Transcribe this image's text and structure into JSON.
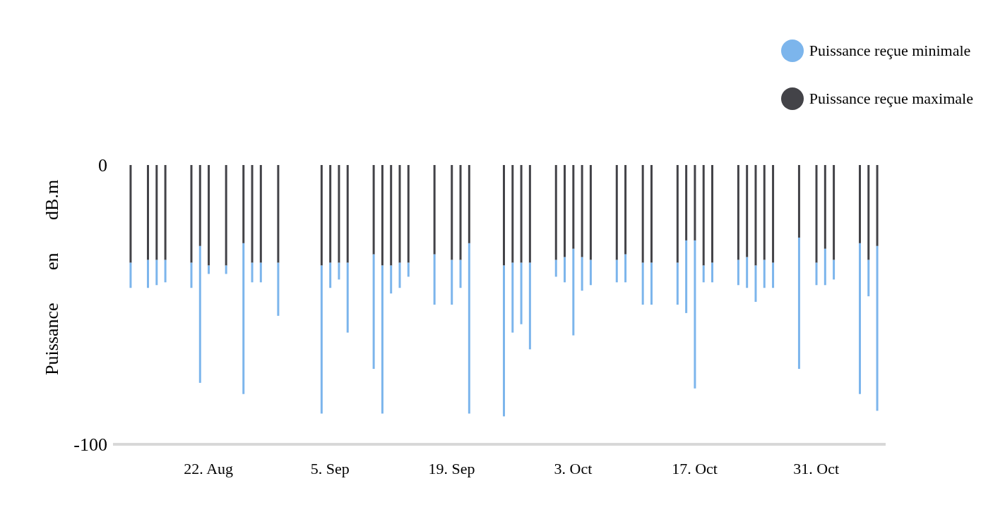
{
  "chart_data": {
    "type": "bar",
    "stacked": true,
    "ylabel": "Puissance en dB.m",
    "x": [
      "--08-13",
      "--08-15",
      "--08-16",
      "--08-17",
      "--08-20",
      "--08-21",
      "--08-22",
      "--08-24",
      "--08-26",
      "--08-27",
      "--08-28",
      "--08-30",
      "--09-04",
      "--09-05",
      "--09-06",
      "--09-07",
      "--09-10",
      "--09-11",
      "--09-12",
      "--09-13",
      "--09-14",
      "--09-17",
      "--09-19",
      "--09-20",
      "--09-21",
      "--09-25",
      "--09-26",
      "--09-27",
      "--09-28",
      "--10-01",
      "--10-02",
      "--10-03",
      "--10-04",
      "--10-05",
      "--10-08",
      "--10-09",
      "--10-11",
      "--10-12",
      "--10-15",
      "--10-16",
      "--10-17",
      "--10-18",
      "--10-19",
      "--10-22",
      "--10-23",
      "--10-24",
      "--10-25",
      "--10-26",
      "--10-29",
      "--10-31",
      "--11-01",
      "--11-02",
      "--11-05",
      "--11-06",
      "--11-07"
    ],
    "series": [
      {
        "name": "Puissance reçue maximale",
        "color": "#434348",
        "values": [
          -35,
          -34,
          -34,
          -34,
          -35,
          -29,
          -36,
          -36,
          -28,
          -35,
          -35,
          -35,
          -36,
          -35,
          -35,
          -35,
          -32,
          -36,
          -36,
          -35,
          -35,
          -32,
          -34,
          -34,
          -28,
          -36,
          -35,
          -35,
          -35,
          -34,
          -33,
          -30,
          -33,
          -34,
          -34,
          -32,
          -35,
          -35,
          -35,
          -27,
          -27,
          -36,
          -35,
          -34,
          -33,
          -36,
          -34,
          -35,
          -26,
          -35,
          -30,
          -34,
          -28,
          -34,
          -29
        ]
      },
      {
        "name": "Puissance reçue minimale",
        "color": "#7cb5ec",
        "values": [
          -9,
          -10,
          -9,
          -8,
          -9,
          -49,
          -3,
          -3,
          -54,
          -7,
          -7,
          -19,
          -53,
          -9,
          -6,
          -25,
          -41,
          -53,
          -10,
          -9,
          -5,
          -18,
          -16,
          -10,
          -61,
          -54,
          -25,
          -22,
          -31,
          -6,
          -9,
          -31,
          -12,
          -9,
          -8,
          -10,
          -15,
          -15,
          -15,
          -26,
          -53,
          -6,
          -7,
          -9,
          -11,
          -13,
          -10,
          -9,
          -47,
          -8,
          -13,
          -7,
          -54,
          -13,
          -59
        ]
      }
    ],
    "xlim": [
      "--08-11",
      "--11-08"
    ],
    "xticks": [
      {
        "value": "--08-22",
        "label": "22. Aug"
      },
      {
        "value": "--09-05",
        "label": "5. Sep"
      },
      {
        "value": "--09-19",
        "label": "19. Sep"
      },
      {
        "value": "--10-03",
        "label": "3. Oct"
      },
      {
        "value": "--10-17",
        "label": "17. Oct"
      },
      {
        "value": "--10-31",
        "label": "31. Oct"
      }
    ],
    "ylim": [
      -100,
      0
    ],
    "yticks": [
      -100,
      0
    ],
    "legend": "top right"
  }
}
